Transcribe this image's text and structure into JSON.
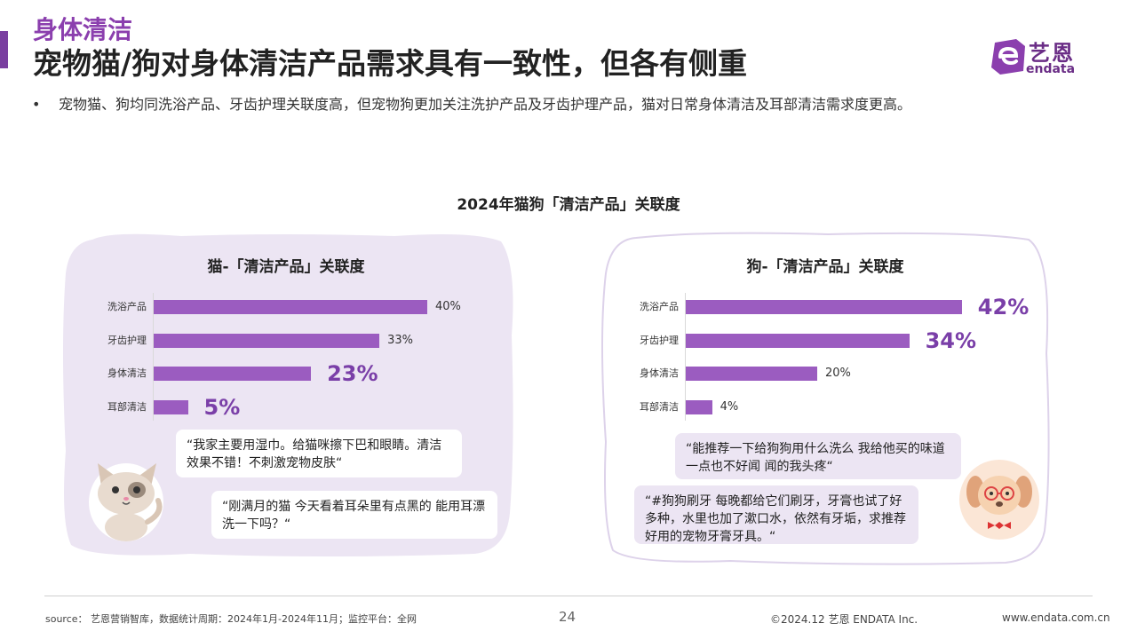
{
  "header": {
    "section_title": "身体清洁",
    "main_title": "宠物猫/狗对身体清洁产品需求具有一致性，但各有侧重"
  },
  "logo": {
    "cn": "艺恩",
    "en": "endata"
  },
  "bullet": "宠物猫、狗均同洗浴产品、牙齿护理关联度高，但宠物狗更加关注洗护产品及牙齿护理产品，猫对日常身体清洁及耳部清洁需求度更高。",
  "main_chart_title": "2024年猫狗「清洁产品」关联度",
  "chart_data": [
    {
      "type": "bar",
      "orientation": "horizontal",
      "title": "猫-「清洁产品」关联度",
      "categories": [
        "洗浴产品",
        "牙齿护理",
        "身体清洁",
        "耳部清洁"
      ],
      "values": [
        40,
        33,
        23,
        5
      ],
      "labels": [
        "40%",
        "33%",
        "23%",
        "5%"
      ],
      "highlighted": [
        false,
        false,
        true,
        true
      ],
      "bar_color": "#9b5cc0"
    },
    {
      "type": "bar",
      "orientation": "horizontal",
      "title": "狗-「清洁产品」关联度",
      "categories": [
        "洗浴产品",
        "牙齿护理",
        "身体清洁",
        "耳部清洁"
      ],
      "values": [
        42,
        34,
        20,
        4
      ],
      "labels": [
        "42%",
        "34%",
        "20%",
        "4%"
      ],
      "highlighted": [
        true,
        true,
        false,
        false
      ],
      "bar_color": "#9b5cc0"
    }
  ],
  "quotes": {
    "cat": [
      "“我家主要用湿巾。给猫咪擦下巴和眼睛。清洁效果不错！不刺激宠物皮肤“",
      "“刚满月的猫 今天看着耳朵里有点黑的 能用耳漂洗一下吗？“"
    ],
    "dog": [
      "“能推荐一下给狗狗用什么洗么 我给他买的味道一点也不好闻 闻的我头疼“",
      "“#狗狗刷牙 每晚都给它们刷牙，牙膏也试了好多种，水里也加了漱口水，依然有牙垢，求推荐好用的宠物牙膏牙具。“"
    ]
  },
  "footer": {
    "source": "source： 艺恩营销智库，数据统计周期：2024年1月-2024年11月；监控平台：全网",
    "page": "24",
    "copyright": "©2024.12 艺恩 ENDATA Inc.",
    "url": "www.endata.com.cn"
  },
  "colors": {
    "accent": "#8b3fae",
    "bar": "#9b5cc0",
    "bubble_bg": "#ece5f3"
  }
}
